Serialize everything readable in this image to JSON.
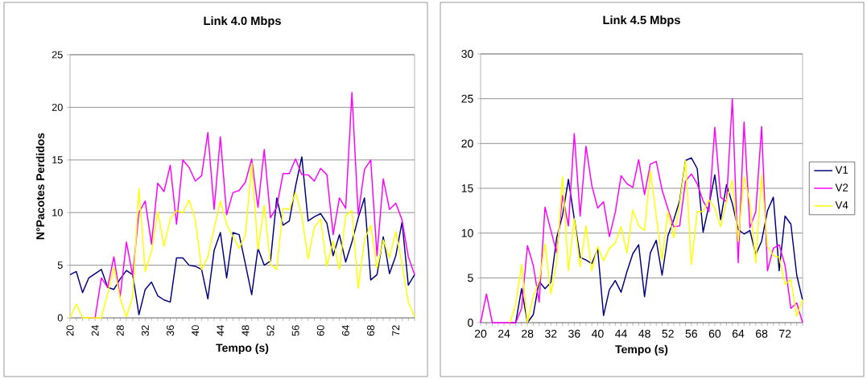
{
  "chart_data": [
    {
      "type": "line",
      "title": "Link 4.0 Mbps",
      "xlabel": "Tempo (s)",
      "ylabel": "N°Pacotes Perdidos",
      "x": [
        20,
        21,
        22,
        23,
        24,
        25,
        26,
        27,
        28,
        29,
        30,
        31,
        32,
        33,
        34,
        35,
        36,
        37,
        38,
        39,
        40,
        41,
        42,
        43,
        44,
        45,
        46,
        47,
        48,
        49,
        50,
        51,
        52,
        53,
        54,
        55,
        56,
        57,
        58,
        59,
        60,
        61,
        62,
        63,
        64,
        65,
        66,
        67,
        68,
        69,
        70,
        71,
        72,
        73,
        74,
        75
      ],
      "xlim": [
        20,
        75
      ],
      "ylim": [
        0,
        25
      ],
      "yticks": [
        0,
        5,
        10,
        15,
        20,
        25
      ],
      "xticks": [
        20,
        {
          "value": 21,
          "label": null
        },
        {
          "value": 22,
          "label": null
        },
        {
          "value": 23,
          "label": null
        },
        24,
        {
          "value": 25,
          "label": null
        },
        {
          "value": 26,
          "label": null
        },
        {
          "value": 27,
          "label": null
        },
        28,
        {
          "value": 29,
          "label": null
        },
        {
          "value": 30,
          "label": null
        },
        {
          "value": 31,
          "label": null
        },
        32,
        {
          "value": 33,
          "label": null
        },
        {
          "value": 34,
          "label": null
        },
        {
          "value": 35,
          "label": null
        },
        36,
        {
          "value": 37,
          "label": null
        },
        {
          "value": 38,
          "label": null
        },
        {
          "value": 39,
          "label": null
        },
        40,
        {
          "value": 41,
          "label": null
        },
        {
          "value": 42,
          "label": null
        },
        {
          "value": 43,
          "label": null
        },
        44,
        {
          "value": 45,
          "label": null
        },
        {
          "value": 46,
          "label": null
        },
        {
          "value": 47,
          "label": null
        },
        48,
        {
          "value": 49,
          "label": null
        },
        {
          "value": 50,
          "label": null
        },
        {
          "value": 51,
          "label": null
        },
        52,
        {
          "value": 53,
          "label": null
        },
        {
          "value": 54,
          "label": null
        },
        {
          "value": 55,
          "label": null
        },
        56,
        {
          "value": 57,
          "label": null
        },
        {
          "value": 58,
          "label": null
        },
        {
          "value": 59,
          "label": null
        },
        60,
        {
          "value": 61,
          "label": null
        },
        {
          "value": 62,
          "label": null
        },
        {
          "value": 63,
          "label": null
        },
        64,
        {
          "value": 65,
          "label": null
        },
        {
          "value": 66,
          "label": null
        },
        {
          "value": 67,
          "label": null
        },
        68,
        {
          "value": 69,
          "label": null
        },
        {
          "value": 70,
          "label": null
        },
        {
          "value": 71,
          "label": null
        },
        72,
        {
          "value": 73,
          "label": null
        },
        {
          "value": 74,
          "label": null
        },
        {
          "value": 75,
          "label": null
        }
      ],
      "grid": "y",
      "marker": "none",
      "line_style": "solid",
      "series": [
        {
          "color": "#000080",
          "values": [
            4.1,
            4.4,
            2.4,
            3.8,
            4.2,
            4.6,
            2.9,
            2.7,
            3.7,
            4.5,
            4.1,
            0.3,
            2.7,
            3.4,
            2.1,
            1.7,
            1.5,
            5.7,
            5.7,
            5.0,
            4.9,
            4.6,
            1.8,
            6.4,
            8.1,
            3.8,
            8.1,
            7.9,
            5.1,
            2.2,
            6.6,
            5.0,
            5.4,
            11.4,
            8.8,
            9.2,
            12.5,
            15.3,
            9.2,
            9.6,
            9.9,
            9.0,
            5.9,
            7.9,
            5.3,
            7.2,
            9.5,
            11.4,
            3.6,
            4.1,
            7.7,
            4.2,
            5.9,
            9.1,
            3.1,
            4.1
          ]
        },
        {
          "color": "#ff00ff",
          "values": [
            null,
            null,
            null,
            0,
            0,
            3.8,
            2.9,
            5.8,
            2.0,
            7.2,
            4.0,
            10.0,
            11.1,
            7.0,
            12.8,
            12.0,
            14.5,
            8.9,
            15.0,
            14.3,
            13.0,
            13.5,
            17.6,
            10.3,
            17.2,
            9.8,
            11.9,
            12.1,
            12.9,
            15.1,
            10.5,
            16.0,
            9.5,
            10.5,
            13.7,
            13.7,
            15.1,
            13.6,
            13.6,
            13.0,
            14.2,
            13.6,
            7.9,
            11.4,
            10.4,
            21.4,
            9.8,
            14.1,
            15.0,
            5.9,
            13.2,
            10.3,
            10.9,
            9.3,
            5.8,
            4.1
          ]
        },
        {
          "color": "#ffff00",
          "values": [
            0,
            1.3,
            0,
            0,
            0,
            0,
            2.3,
            4.8,
            1.9,
            0.1,
            2.0,
            12.3,
            4.4,
            6.3,
            10.1,
            6.8,
            9.4,
            10.2,
            10.0,
            11.2,
            9.3,
            4.6,
            5.8,
            8.5,
            11.1,
            8.9,
            7.7,
            6.6,
            7.9,
            14.7,
            6.5,
            10.7,
            5.1,
            4.6,
            10.4,
            10.3,
            11.9,
            9.7,
            5.6,
            8.6,
            9.4,
            4.9,
            7.3,
            4.6,
            9.7,
            10.2,
            2.8,
            7.4,
            8.8,
            4.7,
            7.4,
            5.7,
            8.2,
            5.1,
            1.5,
            0.1
          ]
        }
      ]
    },
    {
      "type": "line",
      "title": "Link 4.5 Mbps",
      "xlabel": "Tempo (s)",
      "x": [
        20,
        21,
        22,
        23,
        24,
        25,
        26,
        27,
        28,
        29,
        30,
        31,
        32,
        33,
        34,
        35,
        36,
        37,
        38,
        39,
        40,
        41,
        42,
        43,
        44,
        45,
        46,
        47,
        48,
        49,
        50,
        51,
        52,
        53,
        54,
        55,
        56,
        57,
        58,
        59,
        60,
        61,
        62,
        63,
        64,
        65,
        66,
        67,
        68,
        69,
        70,
        71,
        72,
        73,
        74,
        75
      ],
      "xlim": [
        20,
        75
      ],
      "ylim": [
        0,
        30
      ],
      "yticks": [
        0,
        5,
        10,
        15,
        20,
        25,
        30
      ],
      "xticks": [
        20,
        {
          "value": 21,
          "label": null
        },
        {
          "value": 22,
          "label": null
        },
        {
          "value": 23,
          "label": null
        },
        24,
        {
          "value": 25,
          "label": null
        },
        {
          "value": 26,
          "label": null
        },
        {
          "value": 27,
          "label": null
        },
        28,
        {
          "value": 29,
          "label": null
        },
        {
          "value": 30,
          "label": null
        },
        {
          "value": 31,
          "label": null
        },
        32,
        {
          "value": 33,
          "label": null
        },
        {
          "value": 34,
          "label": null
        },
        {
          "value": 35,
          "label": null
        },
        36,
        {
          "value": 37,
          "label": null
        },
        {
          "value": 38,
          "label": null
        },
        {
          "value": 39,
          "label": null
        },
        40,
        {
          "value": 41,
          "label": null
        },
        {
          "value": 42,
          "label": null
        },
        {
          "value": 43,
          "label": null
        },
        44,
        {
          "value": 45,
          "label": null
        },
        {
          "value": 46,
          "label": null
        },
        {
          "value": 47,
          "label": null
        },
        48,
        {
          "value": 49,
          "label": null
        },
        {
          "value": 50,
          "label": null
        },
        {
          "value": 51,
          "label": null
        },
        52,
        {
          "value": 53,
          "label": null
        },
        {
          "value": 54,
          "label": null
        },
        {
          "value": 55,
          "label": null
        },
        56,
        {
          "value": 57,
          "label": null
        },
        {
          "value": 58,
          "label": null
        },
        {
          "value": 59,
          "label": null
        },
        60,
        {
          "value": 61,
          "label": null
        },
        {
          "value": 62,
          "label": null
        },
        {
          "value": 63,
          "label": null
        },
        64,
        {
          "value": 65,
          "label": null
        },
        {
          "value": 66,
          "label": null
        },
        {
          "value": 67,
          "label": null
        },
        68,
        {
          "value": 69,
          "label": null
        },
        {
          "value": 70,
          "label": null
        },
        {
          "value": 71,
          "label": null
        },
        72,
        {
          "value": 73,
          "label": null
        },
        {
          "value": 74,
          "label": null
        },
        {
          "value": 75,
          "label": null
        }
      ],
      "grid": "y",
      "marker": "none",
      "line_style": "solid",
      "legend": "right",
      "series": [
        {
          "name": "V1",
          "color": "#000080",
          "values": [
            null,
            null,
            null,
            null,
            null,
            0,
            0,
            3.8,
            0,
            0.9,
            4.6,
            3.8,
            4.5,
            9.5,
            12.0,
            16.0,
            11.6,
            7.3,
            7.0,
            6.6,
            8.2,
            0.8,
            3.7,
            4.7,
            3.4,
            5.7,
            7.7,
            8.7,
            2.9,
            7.8,
            9.2,
            5.3,
            9.7,
            11.5,
            13.6,
            18.1,
            18.4,
            17.2,
            10.1,
            13.1,
            16.5,
            11.5,
            15.4,
            13.3,
            10.4,
            9.9,
            10.3,
            7.6,
            9.1,
            12.5,
            14.0,
            5.8,
            11.9,
            11.0,
            5.3,
            2.5
          ]
        },
        {
          "name": "V2",
          "color": "#ff00ff",
          "values": [
            0,
            3.2,
            0,
            0,
            0,
            0,
            0,
            1.6,
            8.6,
            6.4,
            2.3,
            12.9,
            10.3,
            7.8,
            14.2,
            10.8,
            21.1,
            11.9,
            19.7,
            15.3,
            12.8,
            13.5,
            9.6,
            12.3,
            16.4,
            15.5,
            15.1,
            18.2,
            14.3,
            17.7,
            18.0,
            14.8,
            12.7,
            10.7,
            10.8,
            15.8,
            16.6,
            15.5,
            13.6,
            12.4,
            21.8,
            14.0,
            13.5,
            25.0,
            6.7,
            22.4,
            10.6,
            12.4,
            21.9,
            5.8,
            8.3,
            8.7,
            6.4,
            1.6,
            2.2,
            0
          ]
        },
        {
          "name": "V4",
          "color": "#ffff00",
          "values": [
            null,
            null,
            null,
            null,
            null,
            0,
            2.0,
            6.5,
            0,
            3.0,
            4.6,
            8.8,
            3.2,
            6.8,
            16.3,
            5.8,
            11.6,
            6.2,
            10.8,
            5.8,
            8.5,
            6.9,
            8.3,
            8.9,
            10.7,
            7.8,
            12.6,
            10.8,
            10.3,
            17.0,
            11.9,
            7.0,
            12.4,
            9.5,
            13.3,
            18.1,
            6.5,
            12.4,
            12.4,
            13.7,
            12.8,
            10.7,
            13.6,
            15.9,
            9.1,
            16.3,
            13.4,
            6.7,
            16.5,
            8.5,
            7.5,
            7.3,
            4.3,
            4.8,
            0.7,
            2.6
          ]
        }
      ]
    }
  ]
}
